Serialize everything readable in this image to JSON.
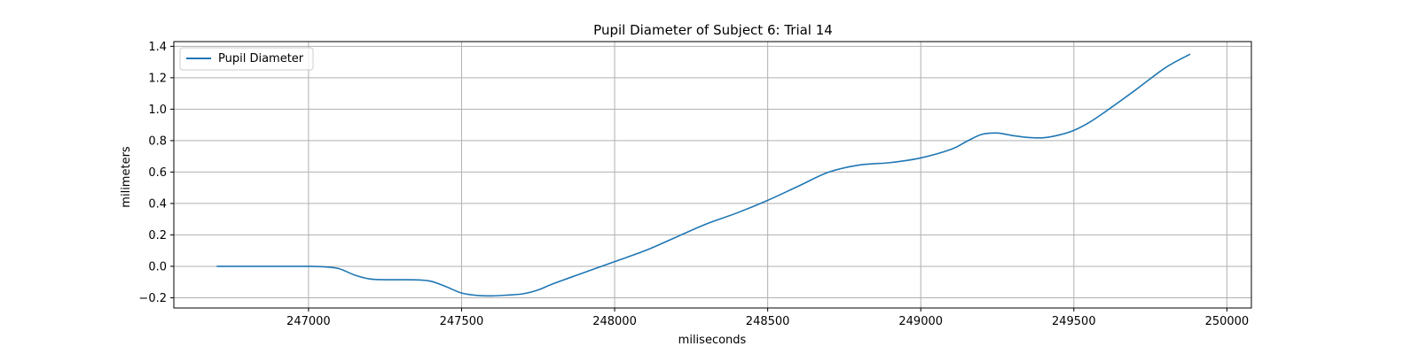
{
  "chart_data": {
    "type": "line",
    "title": "Pupil Diameter of Subject 6: Trial 14",
    "xlabel": "miliseconds",
    "ylabel": "milimeters",
    "xlim": [
      246560,
      250080
    ],
    "ylim": [
      -0.265,
      1.43
    ],
    "xticks": [
      247000,
      247500,
      248000,
      248500,
      249000,
      249500,
      250000
    ],
    "yticks": [
      -0.2,
      0.0,
      0.2,
      0.4,
      0.6,
      0.8,
      1.0,
      1.2,
      1.4
    ],
    "xtick_labels": [
      "247000",
      "247500",
      "248000",
      "248500",
      "249000",
      "249500",
      "250000"
    ],
    "ytick_labels": [
      "−0.2",
      "0.0",
      "0.2",
      "0.4",
      "0.6",
      "0.8",
      "1.0",
      "1.2",
      "1.4"
    ],
    "grid": true,
    "legend_position": "top-left",
    "series": [
      {
        "name": "Pupil Diameter",
        "color": "#1f77b4",
        "x": [
          246700,
          246800,
          246900,
          247000,
          247050,
          247100,
          247150,
          247200,
          247250,
          247300,
          247350,
          247400,
          247450,
          247500,
          247550,
          247600,
          247650,
          247700,
          247750,
          247800,
          247900,
          248000,
          248100,
          248200,
          248300,
          248400,
          248500,
          248600,
          248700,
          248800,
          248900,
          249000,
          249100,
          249150,
          249200,
          249250,
          249300,
          249350,
          249400,
          249450,
          249500,
          249550,
          249600,
          249700,
          249800,
          249880
        ],
        "y": [
          0.0,
          0.0,
          0.0,
          0.0,
          -0.003,
          -0.015,
          -0.055,
          -0.08,
          -0.085,
          -0.085,
          -0.086,
          -0.095,
          -0.13,
          -0.17,
          -0.185,
          -0.188,
          -0.183,
          -0.175,
          -0.15,
          -0.11,
          -0.04,
          0.03,
          0.1,
          0.185,
          0.27,
          0.34,
          0.42,
          0.51,
          0.6,
          0.645,
          0.66,
          0.69,
          0.745,
          0.795,
          0.84,
          0.848,
          0.832,
          0.82,
          0.818,
          0.835,
          0.865,
          0.915,
          0.98,
          1.12,
          1.265,
          1.35
        ]
      }
    ]
  }
}
